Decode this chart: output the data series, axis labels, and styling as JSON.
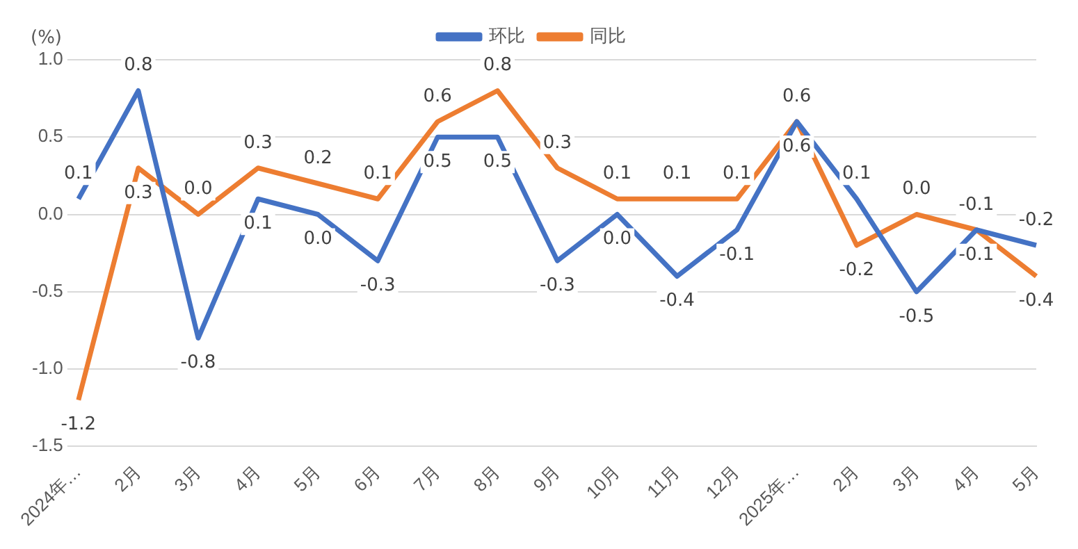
{
  "chart_data": {
    "type": "line",
    "ylabel": "(%)",
    "categories": [
      "2024年…",
      "2月",
      "3月",
      "4月",
      "5月",
      "6月",
      "7月",
      "8月",
      "9月",
      "10月",
      "11月",
      "12月",
      "2025年…",
      "2月",
      "3月",
      "4月",
      "5月"
    ],
    "series": [
      {
        "name": "环比",
        "color": "#4472c4",
        "values": [
          0.1,
          0.8,
          -0.8,
          0.1,
          0.0,
          -0.3,
          0.5,
          0.5,
          -0.3,
          0.0,
          -0.4,
          -0.1,
          0.6,
          0.1,
          -0.5,
          -0.1,
          -0.2
        ],
        "value_labels": [
          "0.1",
          "0.8",
          "-0.8",
          "0.1",
          "0.0",
          "-0.3",
          "0.5",
          "0.5",
          "-0.3",
          "0.0",
          "-0.4",
          "-0.1",
          "0.6",
          "0.1",
          "-0.5",
          "-0.1",
          "-0.2"
        ]
      },
      {
        "name": "同比",
        "color": "#ed7d31",
        "values": [
          -1.2,
          0.3,
          0.0,
          0.3,
          0.2,
          0.1,
          0.6,
          0.8,
          0.3,
          0.1,
          0.1,
          0.1,
          0.6,
          -0.2,
          0.0,
          -0.1,
          -0.4
        ],
        "value_labels": [
          "-1.2",
          "0.3",
          "0.0",
          "0.3",
          "0.2",
          "0.1",
          "0.6",
          "0.8",
          "0.3",
          "0.1",
          "0.1",
          "0.1",
          "0.6",
          "-0.2",
          "0.0",
          "-0.1",
          "-0.4"
        ]
      }
    ],
    "ylim": [
      -1.5,
      1.0
    ],
    "yticks": [
      {
        "value": -1.5,
        "label": "-1.5"
      },
      {
        "value": -1,
        "label": "-1.0"
      },
      {
        "value": -0.5,
        "label": "-0.5"
      },
      {
        "value": 0,
        "label": "0.0"
      },
      {
        "value": 0.5,
        "label": "0.5"
      },
      {
        "value": 1,
        "label": "1.0"
      }
    ],
    "grid": "y",
    "legend": "top",
    "marker": "none",
    "line_style": "solid"
  }
}
